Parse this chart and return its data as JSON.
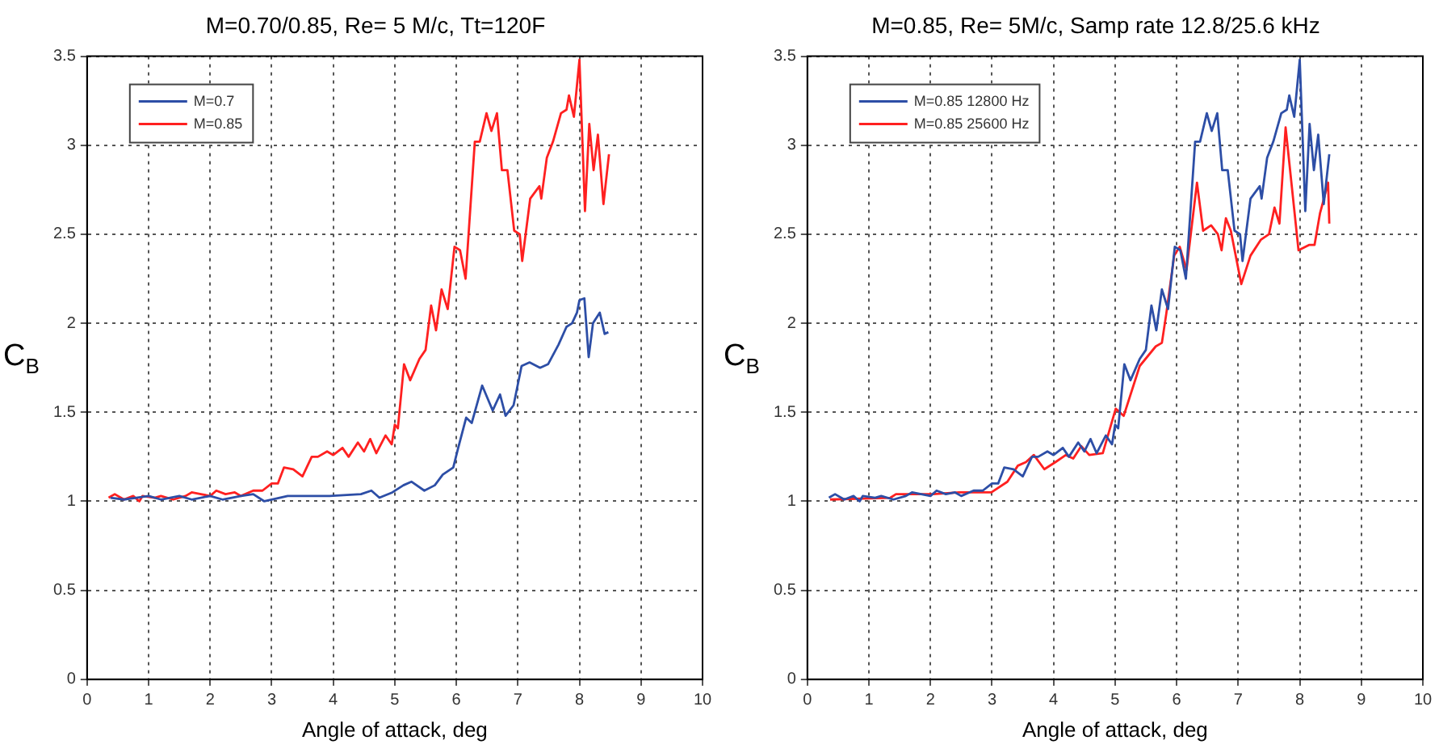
{
  "chart_data": [
    {
      "type": "line",
      "title": "M=0.70/0.85, Re= 5 M/c, Tt=120F",
      "xlabel": "Angle of attack, deg",
      "ylabel": "C$_{B}$",
      "xlim": [
        0,
        10
      ],
      "xticks": [
        0,
        1,
        2,
        3,
        4,
        5,
        6,
        7,
        8,
        9,
        10
      ],
      "ylim": [
        0,
        3.5
      ],
      "yticks": [
        0,
        0.5,
        1,
        1.5,
        2,
        2.5,
        3,
        3.5
      ],
      "grid": true,
      "legend": "top left",
      "line_style": "solid",
      "marker": "none",
      "series": [
        {
          "name": "M=0.7",
          "color": "#2d4ea6",
          "x": [
            0.38,
            0.6,
            0.8,
            1.0,
            1.2,
            1.5,
            1.7,
            2.0,
            2.2,
            2.5,
            2.7,
            2.88,
            3.26,
            3.94,
            4.45,
            4.62,
            4.75,
            4.96,
            5.14,
            5.27,
            5.48,
            5.65,
            5.78,
            5.95,
            6.03,
            6.16,
            6.25,
            6.42,
            6.59,
            6.71,
            6.8,
            6.93,
            7.06,
            7.19,
            7.36,
            7.49,
            7.66,
            7.79,
            7.88,
            7.96,
            8.0,
            8.08,
            8.15,
            8.22,
            8.33,
            8.41,
            8.47
          ],
          "values": [
            1.02,
            1.01,
            1.02,
            1.03,
            1.01,
            1.03,
            1.01,
            1.03,
            1.01,
            1.03,
            1.04,
            1.0,
            1.03,
            1.03,
            1.04,
            1.06,
            1.02,
            1.05,
            1.09,
            1.11,
            1.06,
            1.09,
            1.15,
            1.19,
            1.3,
            1.47,
            1.44,
            1.65,
            1.51,
            1.6,
            1.48,
            1.54,
            1.76,
            1.78,
            1.75,
            1.77,
            1.88,
            1.98,
            2.0,
            2.06,
            2.13,
            2.14,
            1.81,
            2.0,
            2.06,
            1.94,
            1.95
          ]
        },
        {
          "name": "M=0.85",
          "color": "#ff2020",
          "x": [
            0.35,
            0.45,
            0.6,
            0.75,
            0.85,
            0.9,
            1.1,
            1.2,
            1.4,
            1.6,
            1.7,
            1.85,
            2.0,
            2.1,
            2.25,
            2.4,
            2.5,
            2.7,
            2.85,
            3.0,
            3.1,
            3.2,
            3.35,
            3.5,
            3.65,
            3.75,
            3.9,
            4.0,
            4.15,
            4.25,
            4.4,
            4.5,
            4.6,
            4.7,
            4.85,
            4.95,
            5.0,
            5.05,
            5.15,
            5.25,
            5.4,
            5.5,
            5.59,
            5.67,
            5.76,
            5.86,
            5.97,
            6.06,
            6.15,
            6.3,
            6.38,
            6.49,
            6.57,
            6.66,
            6.74,
            6.83,
            6.94,
            7.03,
            7.07,
            7.2,
            7.35,
            7.38,
            7.47,
            7.57,
            7.7,
            7.79,
            7.83,
            7.91,
            8.0,
            8.09,
            8.16,
            8.23,
            8.3,
            8.39,
            8.48
          ],
          "values": [
            1.02,
            1.04,
            1.01,
            1.03,
            1.0,
            1.03,
            1.02,
            1.03,
            1.01,
            1.03,
            1.05,
            1.04,
            1.03,
            1.06,
            1.04,
            1.05,
            1.03,
            1.06,
            1.06,
            1.1,
            1.1,
            1.19,
            1.18,
            1.14,
            1.25,
            1.25,
            1.28,
            1.26,
            1.3,
            1.25,
            1.33,
            1.28,
            1.35,
            1.27,
            1.37,
            1.32,
            1.43,
            1.41,
            1.77,
            1.68,
            1.8,
            1.85,
            2.1,
            1.96,
            2.19,
            2.08,
            2.43,
            2.41,
            2.25,
            3.02,
            3.02,
            3.18,
            3.08,
            3.18,
            2.86,
            2.86,
            2.52,
            2.5,
            2.35,
            2.7,
            2.77,
            2.7,
            2.93,
            3.02,
            3.18,
            3.2,
            3.28,
            3.16,
            3.48,
            2.63,
            3.12,
            2.86,
            3.06,
            2.67,
            2.95
          ]
        }
      ]
    },
    {
      "type": "line",
      "title": "M=0.85, Re= 5M/c, Samp rate 12.8/25.6 kHz",
      "xlabel": "Angle of attack, deg",
      "ylabel": "C$_{B}$",
      "xlim": [
        0,
        10
      ],
      "xticks": [
        0,
        1,
        2,
        3,
        4,
        5,
        6,
        7,
        8,
        9,
        10
      ],
      "ylim": [
        0,
        3.5
      ],
      "yticks": [
        0,
        0.5,
        1,
        1.5,
        2,
        2.5,
        3,
        3.5
      ],
      "grid": true,
      "legend": "top left",
      "line_style": "solid",
      "marker": "none",
      "series": [
        {
          "name": "M=0.85 12800 Hz",
          "color": "#2d4ea6",
          "x": [
            0.35,
            0.45,
            0.6,
            0.75,
            0.85,
            0.9,
            1.1,
            1.2,
            1.4,
            1.6,
            1.7,
            1.85,
            2.0,
            2.1,
            2.25,
            2.4,
            2.5,
            2.7,
            2.85,
            3.0,
            3.1,
            3.2,
            3.35,
            3.5,
            3.65,
            3.75,
            3.9,
            4.0,
            4.15,
            4.25,
            4.4,
            4.5,
            4.6,
            4.7,
            4.85,
            4.95,
            5.0,
            5.05,
            5.15,
            5.25,
            5.4,
            5.5,
            5.59,
            5.67,
            5.76,
            5.86,
            5.97,
            6.06,
            6.15,
            6.3,
            6.38,
            6.49,
            6.57,
            6.66,
            6.74,
            6.83,
            6.94,
            7.03,
            7.07,
            7.2,
            7.35,
            7.38,
            7.47,
            7.57,
            7.7,
            7.79,
            7.83,
            7.91,
            8.0,
            8.09,
            8.16,
            8.23,
            8.3,
            8.39,
            8.48
          ],
          "values": [
            1.02,
            1.04,
            1.01,
            1.03,
            1.0,
            1.03,
            1.02,
            1.03,
            1.01,
            1.03,
            1.05,
            1.04,
            1.03,
            1.06,
            1.04,
            1.05,
            1.03,
            1.06,
            1.06,
            1.1,
            1.1,
            1.19,
            1.18,
            1.14,
            1.25,
            1.25,
            1.28,
            1.26,
            1.3,
            1.25,
            1.33,
            1.28,
            1.35,
            1.27,
            1.37,
            1.32,
            1.43,
            1.41,
            1.77,
            1.68,
            1.8,
            1.85,
            2.1,
            1.96,
            2.19,
            2.08,
            2.43,
            2.41,
            2.25,
            3.02,
            3.02,
            3.18,
            3.08,
            3.18,
            2.86,
            2.86,
            2.52,
            2.5,
            2.35,
            2.7,
            2.77,
            2.7,
            2.93,
            3.02,
            3.18,
            3.2,
            3.28,
            3.16,
            3.48,
            2.63,
            3.12,
            2.86,
            3.06,
            2.67,
            2.95
          ]
        },
        {
          "name": "M=0.85 25600 Hz",
          "color": "#ff2020",
          "x": [
            0.37,
            1.35,
            1.44,
            2.04,
            2.47,
            2.99,
            3.25,
            3.42,
            3.55,
            3.68,
            3.85,
            4.03,
            4.2,
            4.32,
            4.45,
            4.58,
            4.8,
            5.01,
            5.14,
            5.4,
            5.66,
            5.76,
            5.83,
            5.96,
            6.05,
            6.16,
            6.33,
            6.43,
            6.56,
            6.67,
            6.73,
            6.8,
            6.88,
            7.05,
            7.2,
            7.37,
            7.5,
            7.59,
            7.67,
            7.77,
            7.98,
            8.15,
            8.24,
            8.33,
            8.37,
            8.46,
            8.48
          ],
          "values": [
            1.01,
            1.02,
            1.04,
            1.04,
            1.05,
            1.05,
            1.11,
            1.2,
            1.22,
            1.26,
            1.18,
            1.22,
            1.26,
            1.24,
            1.31,
            1.26,
            1.27,
            1.52,
            1.48,
            1.76,
            1.87,
            1.89,
            2.05,
            2.38,
            2.43,
            2.3,
            2.79,
            2.52,
            2.55,
            2.5,
            2.41,
            2.59,
            2.52,
            2.22,
            2.38,
            2.47,
            2.5,
            2.65,
            2.56,
            3.1,
            2.41,
            2.44,
            2.44,
            2.62,
            2.67,
            2.79,
            2.56
          ]
        }
      ]
    }
  ]
}
